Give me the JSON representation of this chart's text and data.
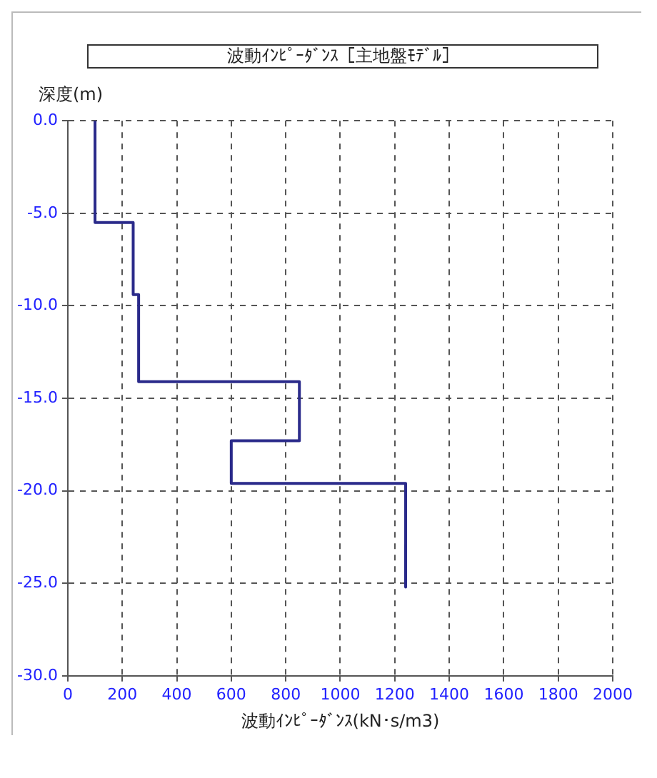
{
  "chart_data": {
    "type": "line",
    "title": "波動ｲﾝﾋﾟｰﾀﾞﾝｽ［主地盤ﾓﾃﾞﾙ］",
    "xlabel": "波動ｲﾝﾋﾟｰﾀﾞﾝｽ(kN･s/m3)",
    "ylabel": "深度(m)",
    "x": [
      100,
      100,
      240,
      240,
      260,
      260,
      850,
      850,
      600,
      600,
      1240,
      1240
    ],
    "series": [
      {
        "color": "#2a2a8a",
        "values": [
          0,
          -5.5,
          -5.5,
          -9.4,
          -9.4,
          -14.1,
          -14.1,
          -17.3,
          -17.3,
          -19.6,
          -19.6,
          -25.2
        ]
      }
    ],
    "xlim": [
      0,
      2000
    ],
    "xticks": [
      0,
      200,
      400,
      600,
      800,
      1000,
      1200,
      1400,
      1600,
      1800,
      2000
    ],
    "ylim": [
      -30,
      0
    ],
    "yticks": [
      {
        "value": 0,
        "label": "0.0"
      },
      {
        "value": -5,
        "label": "-5.0"
      },
      {
        "value": -10,
        "label": "-10.0"
      },
      {
        "value": -15,
        "label": "-15.0"
      },
      {
        "value": -20,
        "label": "-20.0"
      },
      {
        "value": -25,
        "label": "-25.0"
      },
      {
        "value": -30,
        "label": "-30.0"
      }
    ],
    "grid": true,
    "legend": false,
    "marker": "none",
    "line_style": "solid"
  }
}
